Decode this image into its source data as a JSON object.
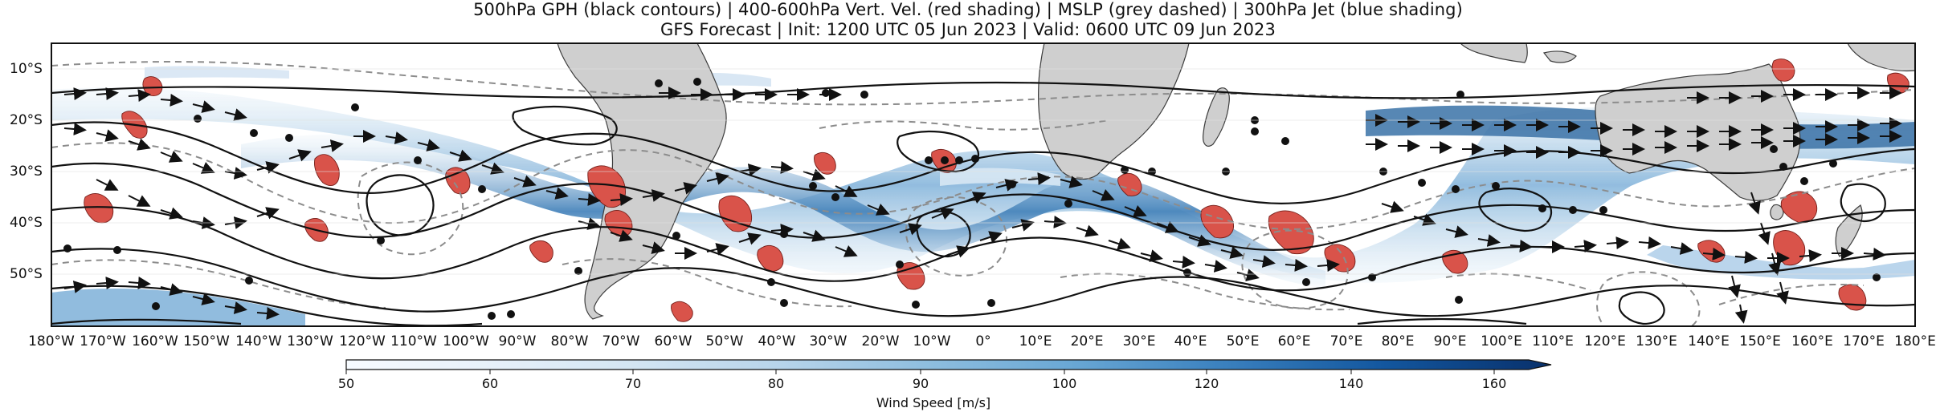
{
  "title": {
    "line1": "500hPa GPH (black contours) | 400-600hPa Vert. Vel. (red shading) | MSLP (grey dashed) | 300hPa Jet (blue shading)",
    "line2": "GFS Forecast | Init: 1200 UTC 05 Jun 2023 | Valid: 0600 UTC 09 Jun 2023"
  },
  "map": {
    "lon_ticks": [
      "180°W",
      "170°W",
      "160°W",
      "150°W",
      "140°W",
      "130°W",
      "120°W",
      "110°W",
      "100°W",
      "90°W",
      "80°W",
      "70°W",
      "60°W",
      "50°W",
      "40°W",
      "30°W",
      "20°W",
      "10°W",
      "0°",
      "10°E",
      "20°E",
      "30°E",
      "40°E",
      "50°E",
      "60°E",
      "70°E",
      "80°E",
      "90°E",
      "100°E",
      "110°E",
      "120°E",
      "130°E",
      "140°E",
      "150°E",
      "160°E",
      "170°E",
      "180°E"
    ],
    "lat_ticks": [
      "10°S",
      "20°S",
      "30°S",
      "40°S",
      "50°S"
    ],
    "lon_range": [
      -180,
      180
    ],
    "lat_range": [
      -60,
      -5
    ],
    "colors": {
      "land": "#cfcfcf",
      "gph_contour": "#111111",
      "mslp_contour": "#8c8c8c",
      "vertical_velocity": "#d9534a",
      "jet_light": "#d4e6f3",
      "jet_mid": "#8dbbde",
      "jet_dark": "#2e6ba6",
      "jet_darkest": "#0b2f63"
    }
  },
  "colorbar": {
    "label": "Wind Speed [m/s]",
    "ticks": [
      "50",
      "60",
      "70",
      "80",
      "90",
      "100",
      "120",
      "140",
      "160"
    ],
    "colors": [
      "#f7fbff",
      "#deebf7",
      "#c6dbef",
      "#9ecae1",
      "#6baed6",
      "#4292c6",
      "#2171b5",
      "#08519c",
      "#08306b"
    ]
  }
}
